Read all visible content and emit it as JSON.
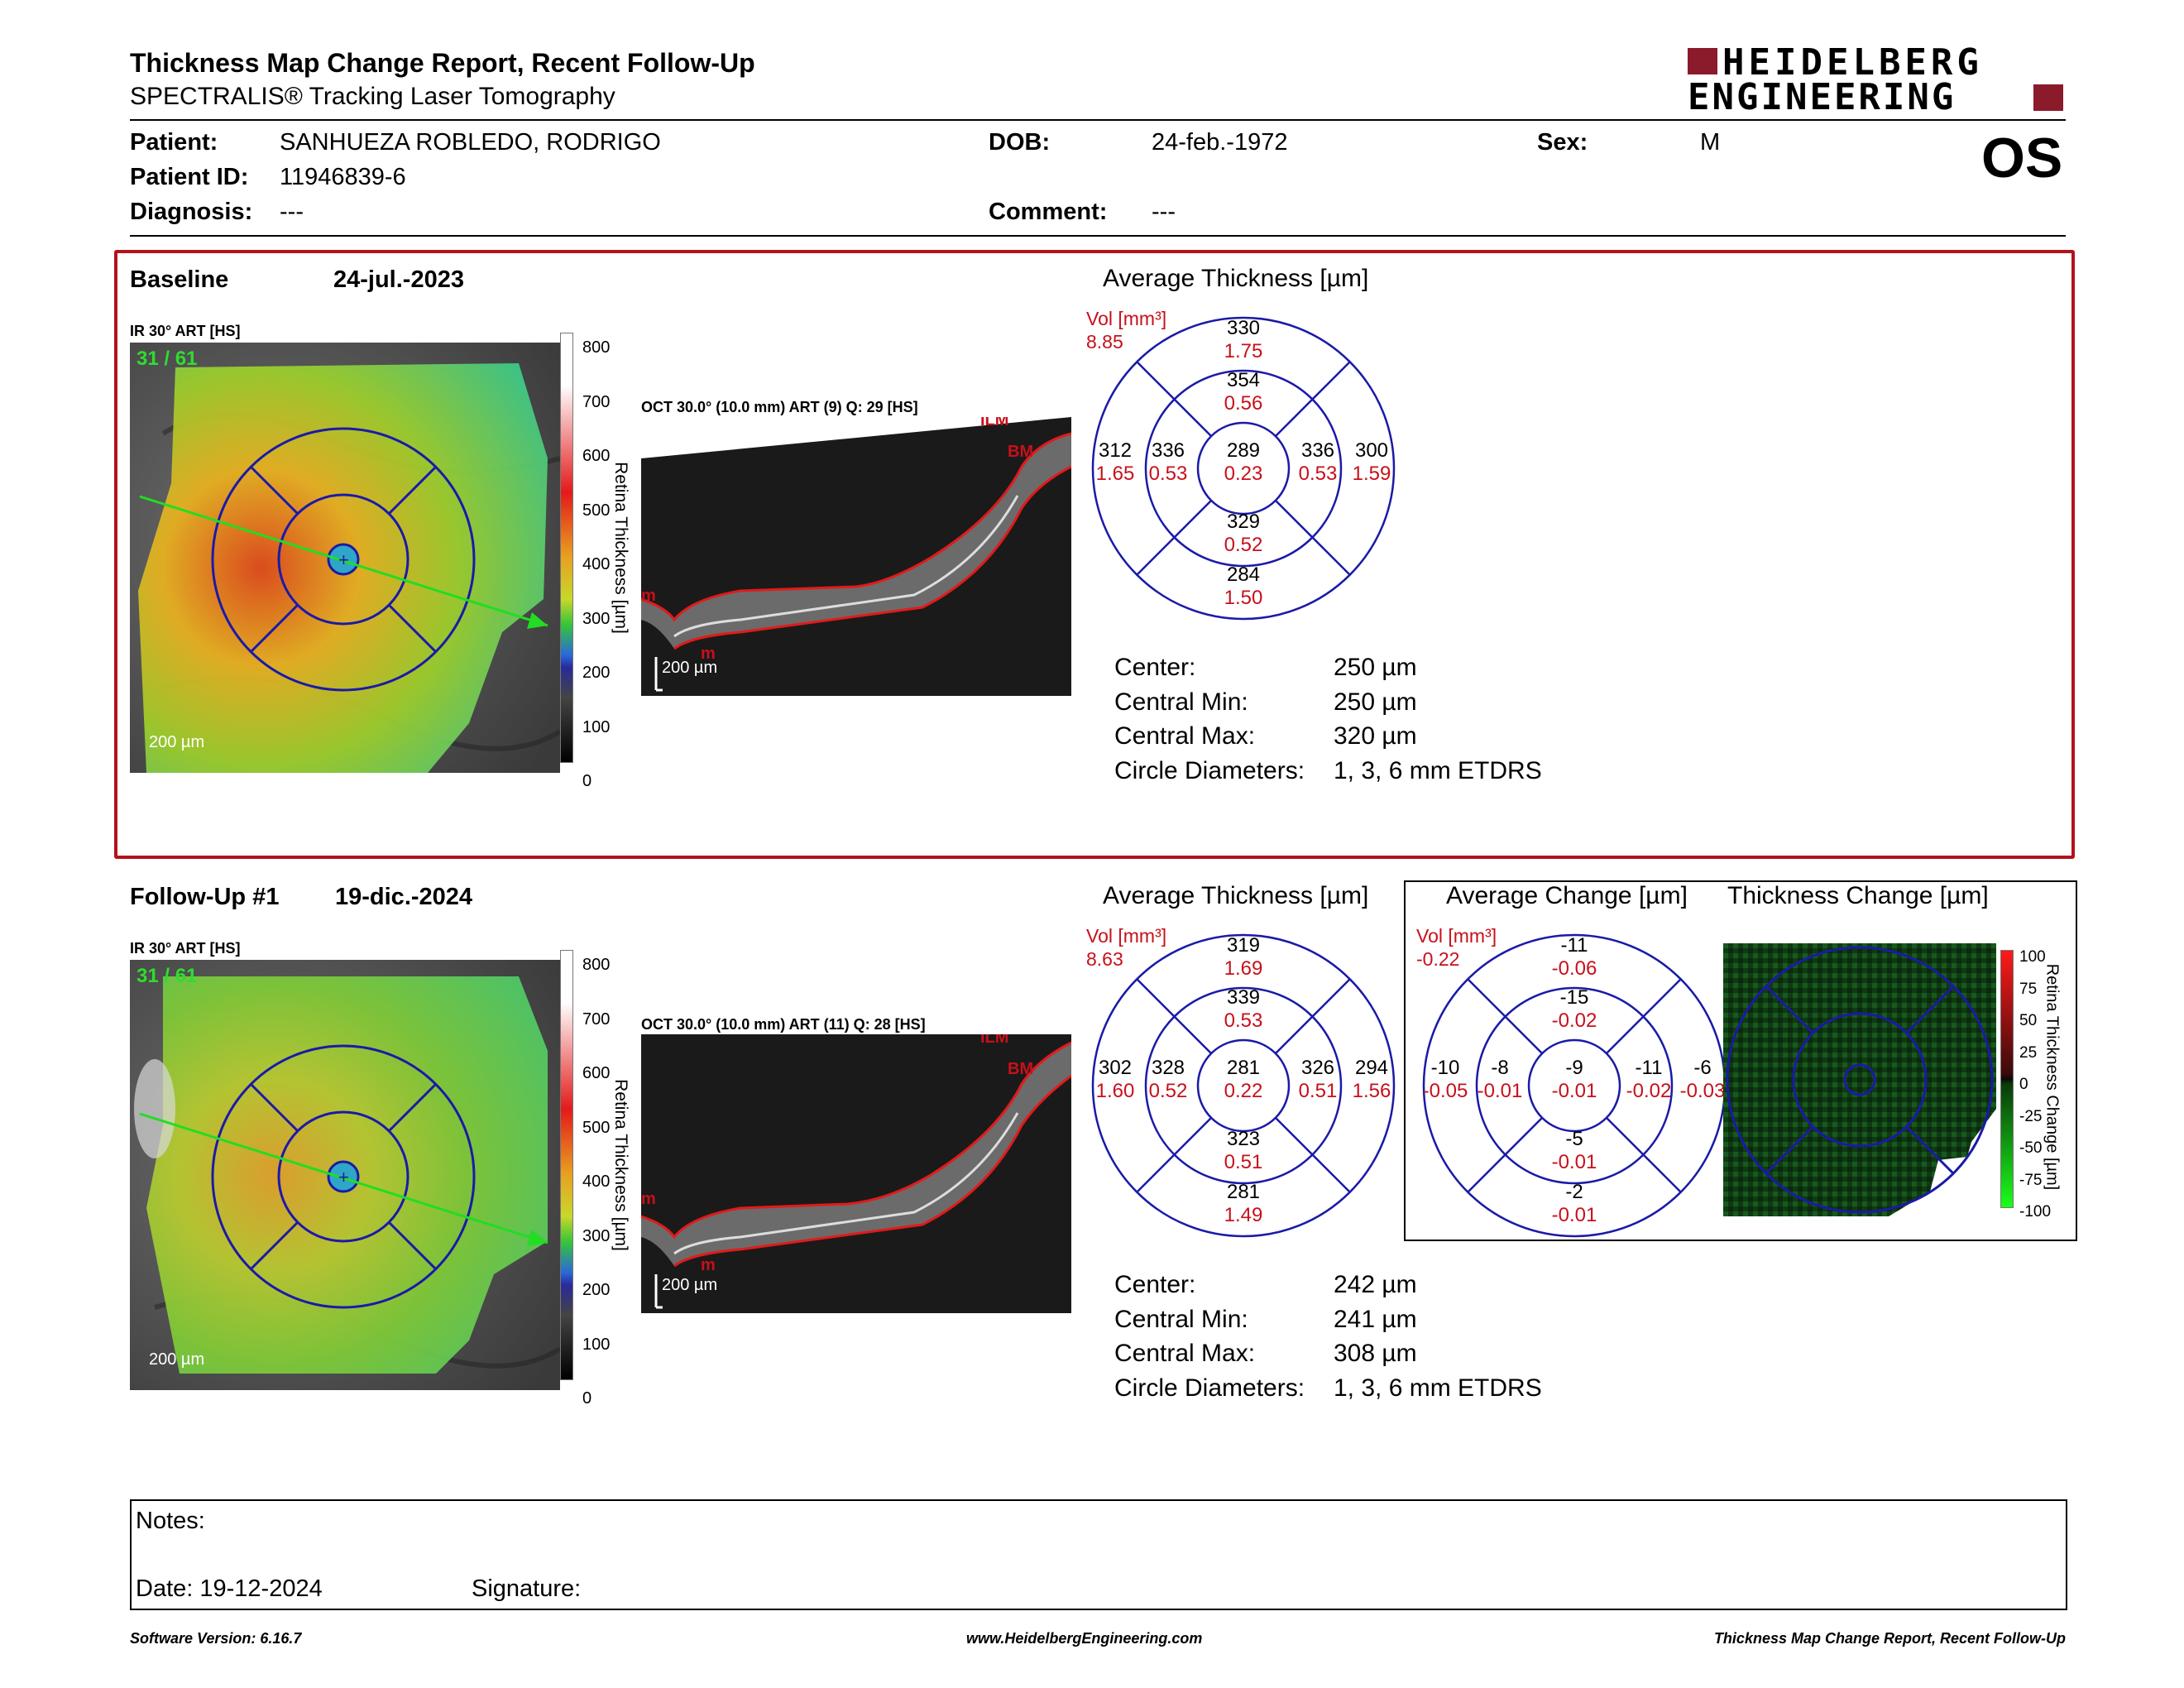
{
  "header": {
    "title": "Thickness Map Change Report, Recent Follow-Up",
    "subtitle": "SPECTRALIS® Tracking Laser Tomography",
    "logo_line1": "HEIDELBERG",
    "logo_line2": "ENGINEERING",
    "eye": "OS"
  },
  "patient": {
    "patient_label": "Patient:",
    "patient_value": "SANHUEZA ROBLEDO, RODRIGO",
    "id_label": "Patient ID:",
    "id_value": "11946839-6",
    "diagnosis_label": "Diagnosis:",
    "diagnosis_value": "---",
    "dob_label": "DOB:",
    "dob_value": "24-feb.-1972",
    "comment_label": "Comment:",
    "comment_value": "---",
    "sex_label": "Sex:",
    "sex_value": "M"
  },
  "baseline": {
    "label": "Baseline",
    "date": "24-jul.-2023",
    "ir_label": "IR 30° ART [HS]",
    "ir_quality": "31 / 61",
    "ir_scale": "200 µm",
    "oct_label": "OCT 30.0° (10.0 mm) ART (9) Q: 29 [HS]",
    "oct_scale": "200 µm",
    "colorbar_ticks": [
      "800",
      "700",
      "600",
      "500",
      "400",
      "300",
      "200",
      "100",
      "0"
    ],
    "colorbar_title": "Retina Thickness [µm]",
    "avg_title": "Average Thickness [µm]",
    "vol_label": "Vol [mm³]",
    "vol_value": "8.85",
    "etdrs": {
      "outer_sup": {
        "t": "330",
        "v": "1.75"
      },
      "inner_sup": {
        "t": "354",
        "v": "0.56"
      },
      "outer_temp": {
        "t": "312",
        "v": "1.65"
      },
      "inner_temp": {
        "t": "336",
        "v": "0.53"
      },
      "center": {
        "t": "289",
        "v": "0.23"
      },
      "inner_nas": {
        "t": "336",
        "v": "0.53"
      },
      "outer_nas": {
        "t": "300",
        "v": "1.59"
      },
      "inner_inf": {
        "t": "329",
        "v": "0.52"
      },
      "outer_inf": {
        "t": "284",
        "v": "1.50"
      }
    },
    "stats": [
      {
        "k": "Center:",
        "v": "250 µm"
      },
      {
        "k": "Central Min:",
        "v": "250 µm"
      },
      {
        "k": "Central Max:",
        "v": "320 µm"
      },
      {
        "k": "Circle Diameters:",
        "v": "1, 3, 6 mm ETDRS"
      }
    ]
  },
  "followup": {
    "label": "Follow-Up #1",
    "date": "19-dic.-2024",
    "ir_label": "IR 30° ART [HS]",
    "ir_quality": "31 / 61",
    "ir_scale": "200 µm",
    "oct_label": "OCT 30.0° (10.0 mm) ART (11) Q: 28 [HS]",
    "oct_scale": "200 µm",
    "colorbar_ticks": [
      "800",
      "700",
      "600",
      "500",
      "400",
      "300",
      "200",
      "100",
      "0"
    ],
    "colorbar_title": "Retina Thickness [µm]",
    "avg_title": "Average Thickness [µm]",
    "vol_label": "Vol [mm³]",
    "vol_value": "8.63",
    "etdrs": {
      "outer_sup": {
        "t": "319",
        "v": "1.69"
      },
      "inner_sup": {
        "t": "339",
        "v": "0.53"
      },
      "outer_temp": {
        "t": "302",
        "v": "1.60"
      },
      "inner_temp": {
        "t": "328",
        "v": "0.52"
      },
      "center": {
        "t": "281",
        "v": "0.22"
      },
      "inner_nas": {
        "t": "326",
        "v": "0.51"
      },
      "outer_nas": {
        "t": "294",
        "v": "1.56"
      },
      "inner_inf": {
        "t": "323",
        "v": "0.51"
      },
      "outer_inf": {
        "t": "281",
        "v": "1.49"
      }
    },
    "change_title": "Average Change [µm]",
    "change_vol_label": "Vol [mm³]",
    "change_vol_value": "-0.22",
    "change": {
      "outer_sup": {
        "t": "-11",
        "v": "-0.06"
      },
      "inner_sup": {
        "t": "-15",
        "v": "-0.02"
      },
      "outer_temp": {
        "t": "-10",
        "v": "-0.05"
      },
      "inner_temp": {
        "t": "-8",
        "v": "-0.01"
      },
      "center": {
        "t": "-9",
        "v": "-0.01"
      },
      "inner_nas": {
        "t": "-11",
        "v": "-0.02"
      },
      "outer_nas": {
        "t": "-6",
        "v": "-0.03"
      },
      "inner_inf": {
        "t": "-5",
        "v": "-0.01"
      },
      "outer_inf": {
        "t": "-2",
        "v": "-0.01"
      }
    },
    "thick_change_title": "Thickness Change [µm]",
    "change_ticks": [
      "100",
      "75",
      "50",
      "25",
      "0",
      "-25",
      "-50",
      "-75",
      "-100"
    ],
    "change_bar_title": "Retina Thickness Change [µm]",
    "stats": [
      {
        "k": "Center:",
        "v": "242 µm"
      },
      {
        "k": "Central Min:",
        "v": "241 µm"
      },
      {
        "k": "Central Max:",
        "v": "308 µm"
      },
      {
        "k": "Circle Diameters:",
        "v": "1, 3, 6 mm ETDRS"
      }
    ]
  },
  "notes": {
    "notes_label": "Notes:",
    "date_label": "Date: 19-12-2024",
    "signature_label": "Signature:"
  },
  "footer": {
    "software": "Software Version: 6.16.7",
    "website": "www.HeidelbergEngineering.com",
    "report": "Thickness Map Change Report, Recent Follow-Up"
  },
  "colors": {
    "frame_red": "#b3121b",
    "value_red": "#c8101b",
    "grid_blue": "#1a1aa8",
    "logo_red": "#8b1a2b"
  }
}
